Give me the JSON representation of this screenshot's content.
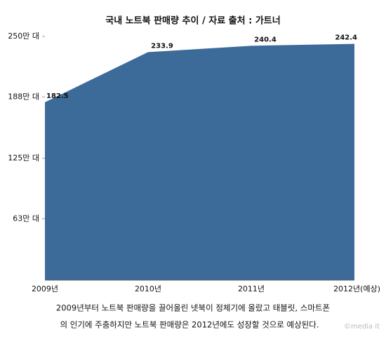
{
  "chart_data": {
    "type": "area",
    "title": "국내 노트북 판매량 추이 / 자료 출처 : 가트너",
    "categories": [
      "2009년",
      "2010년",
      "2011년",
      "2012년(예상)"
    ],
    "values": [
      182.5,
      233.9,
      240.4,
      242.4
    ],
    "color": "#3d6b99",
    "ylim": [
      0,
      250
    ],
    "yticks": [
      {
        "value": 63,
        "label": "63만 대"
      },
      {
        "value": 125,
        "label": "125만 대"
      },
      {
        "value": 188,
        "label": "188만 대"
      },
      {
        "value": 250,
        "label": "250만 대"
      }
    ],
    "grid": false,
    "caption": [
      "2009년부터 노트북 판매량을 끌어올린 넷북이 정체기에 올랐고 태블릿, 스마트폰",
      "의 인기에 주춤하지만 노트북 판매량은 2012년에도 성장할 것으로 예상된다."
    ],
    "watermark": "©media it"
  }
}
